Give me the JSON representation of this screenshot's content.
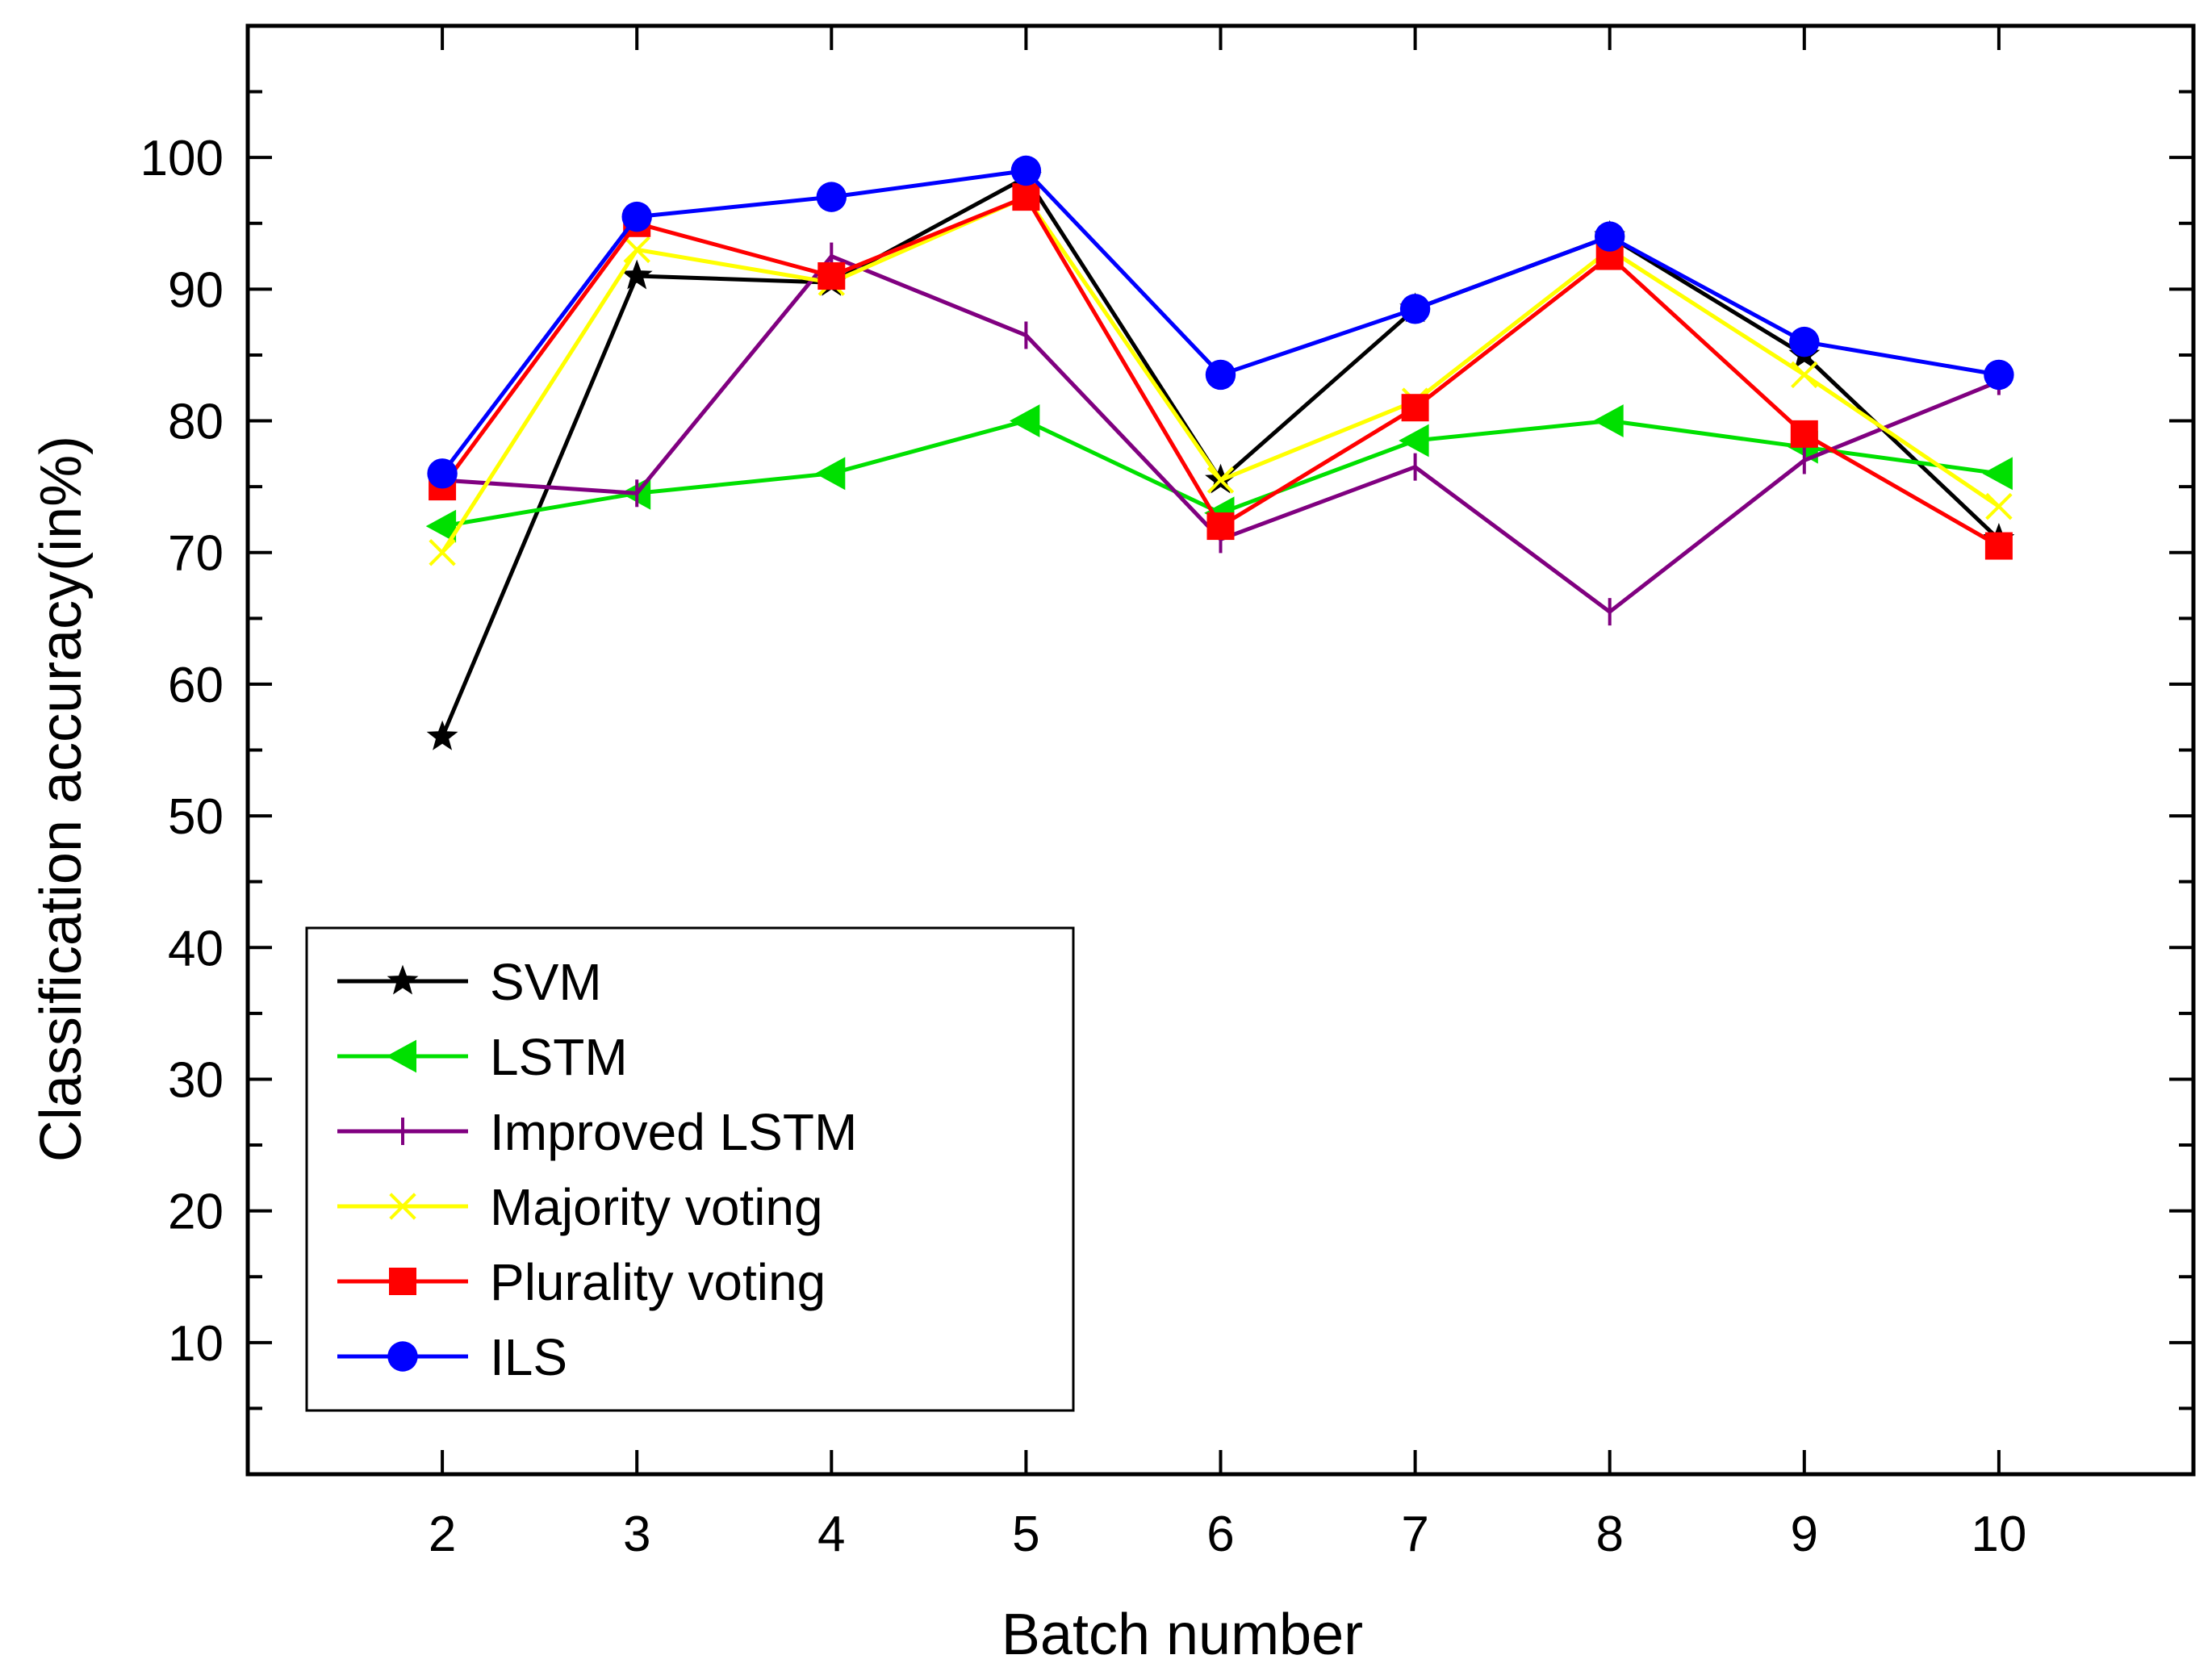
{
  "chart_data": {
    "type": "line",
    "title": "",
    "xlabel": "Batch number",
    "ylabel": "Classification accuracy(in%)",
    "x": [
      2,
      3,
      4,
      5,
      6,
      7,
      8,
      9,
      10
    ],
    "xlim": [
      1,
      11
    ],
    "ylim": [
      0,
      110
    ],
    "xticks": [
      "2",
      "3",
      "4",
      "5",
      "6",
      "7",
      "8",
      "9",
      "10"
    ],
    "yticks": [
      "10",
      "20",
      "30",
      "40",
      "50",
      "60",
      "70",
      "80",
      "90",
      "100"
    ],
    "grid": false,
    "legend_position": "bottom-left",
    "series": [
      {
        "name": "SVM",
        "color": "#000000",
        "marker": "star",
        "values": [
          56,
          91,
          90.5,
          98.5,
          75.5,
          88.5,
          94,
          85,
          71
        ]
      },
      {
        "name": "LSTM",
        "color": "#00e000",
        "marker": "triangle-left",
        "values": [
          72,
          74.5,
          76,
          80,
          73,
          78.5,
          80,
          78,
          76
        ]
      },
      {
        "name": "Improved LSTM",
        "color": "#800080",
        "marker": "vbar",
        "values": [
          75.5,
          74.5,
          92.5,
          86.5,
          71,
          76.5,
          65.5,
          77,
          83
        ]
      },
      {
        "name": "Majority voting",
        "color": "#ffff00",
        "marker": "x",
        "values": [
          70,
          93,
          90.5,
          97,
          75.5,
          81.5,
          93,
          83.5,
          73.5
        ]
      },
      {
        "name": "Plurality voting",
        "color": "#ff0000",
        "marker": "square",
        "values": [
          75,
          95,
          91,
          97,
          72,
          81,
          92.5,
          79,
          70.5
        ]
      },
      {
        "name": "ILS",
        "color": "#0000ff",
        "marker": "circle",
        "values": [
          76,
          95.5,
          97,
          99,
          83.5,
          88.5,
          94,
          86,
          83.5
        ]
      }
    ]
  }
}
